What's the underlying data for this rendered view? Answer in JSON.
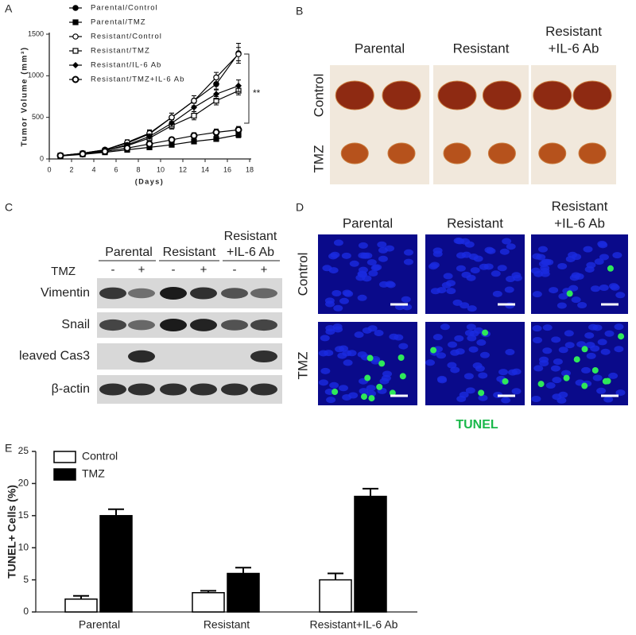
{
  "panels": {
    "A": {
      "label": "A"
    },
    "B": {
      "label": "B",
      "columns": [
        "Parental",
        "Resistant",
        [
          "Resistant",
          "+IL-6 Ab"
        ]
      ],
      "rows": [
        "Control",
        "TMZ"
      ]
    },
    "C": {
      "label": "C",
      "groups": [
        "Parental",
        "Resistant",
        [
          "Resistant",
          "+IL-6 Ab"
        ]
      ],
      "treatment": "TMZ",
      "lanes": [
        "-",
        "+",
        "-",
        "+",
        "-",
        "+"
      ],
      "rows": [
        "Vimentin",
        "Snail",
        "leaved Cas3",
        "β-actin"
      ]
    },
    "D": {
      "label": "D",
      "columns": [
        "Parental",
        "Resistant",
        [
          "Resistant",
          "+IL-6 Ab"
        ]
      ],
      "rows": [
        "Control",
        "TMZ"
      ],
      "stain": "TUNEL"
    },
    "E": {
      "label": "E"
    }
  },
  "chart_data": [
    {
      "type": "line",
      "x_label": "(Days)",
      "y_label": "Tumor Volume (mm³)",
      "annotation": "**",
      "x": [
        1,
        3,
        5,
        7,
        9,
        11,
        13,
        15,
        17
      ],
      "xlim": [
        0,
        18
      ],
      "xticks": [
        0,
        2,
        4,
        6,
        8,
        10,
        12,
        14,
        16,
        18
      ],
      "ylim": [
        0,
        1500
      ],
      "yticks": [
        0,
        500,
        1000,
        1500
      ],
      "series": [
        {
          "name": "Parental/Control",
          "color": "#000000",
          "marker": "circle-filled",
          "values": [
            40,
            70,
            110,
            190,
            300,
            500,
            700,
            900,
            1270
          ],
          "errors": [
            8,
            12,
            20,
            30,
            40,
            50,
            60,
            70,
            120
          ]
        },
        {
          "name": "Parental/TMZ",
          "color": "#000000",
          "marker": "square-filled",
          "values": [
            35,
            55,
            80,
            110,
            140,
            170,
            210,
            240,
            290
          ],
          "errors": [
            5,
            8,
            10,
            15,
            20,
            25,
            25,
            30,
            35
          ]
        },
        {
          "name": "Resistant/Control",
          "color": "#000000",
          "marker": "circle-open",
          "values": [
            40,
            70,
            110,
            200,
            310,
            500,
            700,
            980,
            1260
          ],
          "errors": [
            8,
            12,
            20,
            30,
            40,
            50,
            60,
            60,
            80
          ]
        },
        {
          "name": "Resistant/TMZ",
          "color": "#000000",
          "marker": "square-open",
          "values": [
            40,
            65,
            100,
            160,
            250,
            400,
            520,
            700,
            820
          ],
          "errors": [
            6,
            10,
            15,
            25,
            35,
            40,
            50,
            50,
            50
          ]
        },
        {
          "name": "Resistant/IL-6 Ab",
          "color": "#000000",
          "marker": "diamond-filled",
          "values": [
            40,
            65,
            100,
            170,
            270,
            430,
            620,
            780,
            880
          ],
          "errors": [
            6,
            10,
            15,
            25,
            30,
            40,
            50,
            60,
            70
          ]
        },
        {
          "name": "Resistant/TMZ+IL-6 Ab",
          "color": "#000000",
          "marker": "circle-bold",
          "values": [
            40,
            60,
            90,
            130,
            180,
            230,
            280,
            320,
            350
          ],
          "errors": [
            5,
            8,
            10,
            20,
            25,
            30,
            35,
            40,
            40
          ]
        }
      ]
    },
    {
      "type": "bar",
      "y_label": "TUNEL+ Cells (%)",
      "categories": [
        "Parental",
        "Resistant",
        "Resistant+IL-6 Ab"
      ],
      "ylim": [
        0,
        25
      ],
      "yticks": [
        0,
        5,
        10,
        15,
        20,
        25
      ],
      "series": [
        {
          "name": "Control",
          "color": "#ffffff",
          "values": [
            2,
            3,
            5
          ],
          "errors": [
            0.5,
            0.3,
            1
          ]
        },
        {
          "name": "TMZ",
          "color": "#000000",
          "values": [
            15,
            6,
            18
          ],
          "errors": [
            1,
            0.9,
            1.2
          ]
        }
      ]
    }
  ]
}
